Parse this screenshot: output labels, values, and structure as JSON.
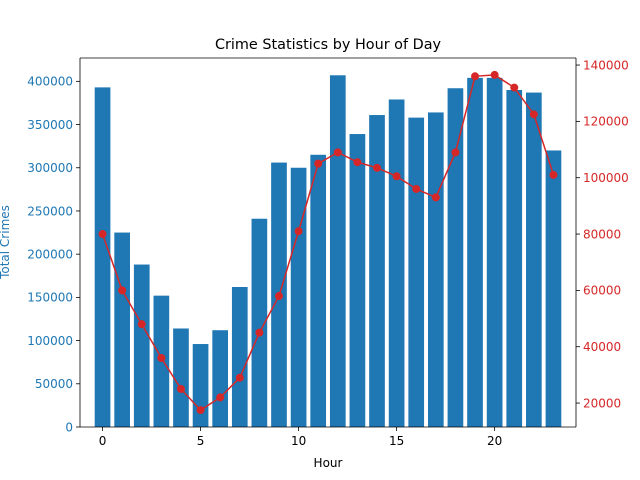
{
  "chart_data": {
    "type": "bar",
    "title": "Crime Statistics by Hour of Day",
    "xlabel": "Hour",
    "ylabel": "Total Crimes",
    "categories": [
      0,
      1,
      2,
      3,
      4,
      5,
      6,
      7,
      8,
      9,
      10,
      11,
      12,
      13,
      14,
      15,
      16,
      17,
      18,
      19,
      20,
      21,
      22,
      23
    ],
    "x_ticks": [
      0,
      5,
      10,
      15,
      20
    ],
    "xlim": [
      -1.15,
      24.15
    ],
    "series": [
      {
        "type": "bar",
        "axis": "left",
        "color": "#1f77b4",
        "values": [
          393000,
          225000,
          188000,
          152000,
          114000,
          96000,
          112000,
          162000,
          241000,
          306000,
          300000,
          315000,
          407000,
          339000,
          361000,
          379000,
          358000,
          364000,
          392000,
          404000,
          404000,
          390000,
          387000,
          320000
        ]
      },
      {
        "type": "line",
        "axis": "right",
        "color": "#d62728",
        "values": [
          80000,
          60000,
          48000,
          36000,
          25000,
          17500,
          22000,
          29000,
          45000,
          58000,
          81000,
          105000,
          109000,
          105500,
          103500,
          100500,
          96000,
          93000,
          109000,
          136000,
          136500,
          132000,
          122500,
          101000
        ]
      }
    ],
    "y_left": {
      "ylim": [
        0,
        427000
      ],
      "ticks": [
        0,
        50000,
        100000,
        150000,
        200000,
        250000,
        300000,
        350000,
        400000
      ],
      "color": "#1f77b4"
    },
    "y_right": {
      "ylim": [
        11500,
        142500
      ],
      "ticks": [
        20000,
        40000,
        60000,
        80000,
        100000,
        120000,
        140000
      ],
      "color": "#d62728"
    },
    "grid": false,
    "legend": "none"
  }
}
